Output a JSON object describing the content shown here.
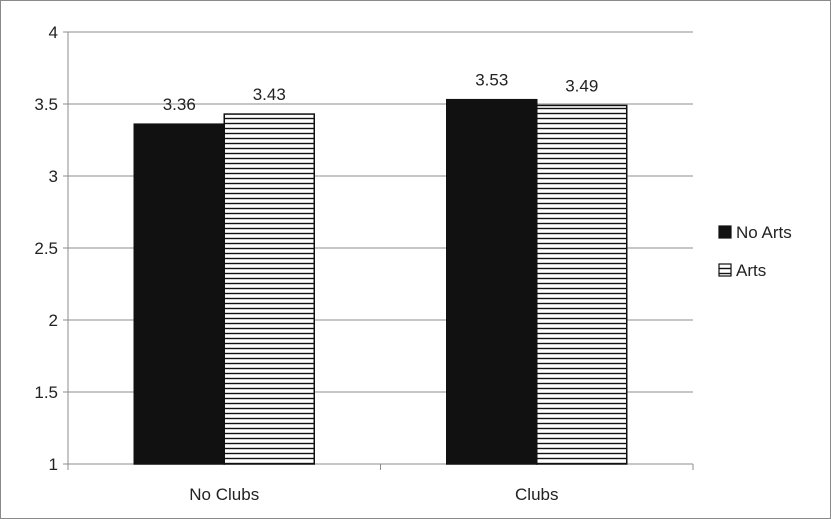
{
  "chart_data": {
    "type": "bar",
    "categories": [
      "No Clubs",
      "Clubs"
    ],
    "series": [
      {
        "name": "No Arts",
        "values": [
          3.36,
          3.53
        ],
        "pattern": "solid",
        "color": "#111111"
      },
      {
        "name": "Arts",
        "values": [
          3.43,
          3.49
        ],
        "pattern": "horizontal-lines",
        "color": "#111111"
      }
    ],
    "data_labels": [
      [
        "3.36",
        "3.53"
      ],
      [
        "3.43",
        "3.49"
      ]
    ],
    "ylim": [
      1,
      4
    ],
    "yticks": [
      1,
      1.5,
      2,
      2.5,
      3,
      3.5,
      4
    ],
    "ytick_labels": [
      "1",
      "1.5",
      "2",
      "2.5",
      "3",
      "3.5",
      "4"
    ],
    "grid": true,
    "legend_position": "right"
  }
}
